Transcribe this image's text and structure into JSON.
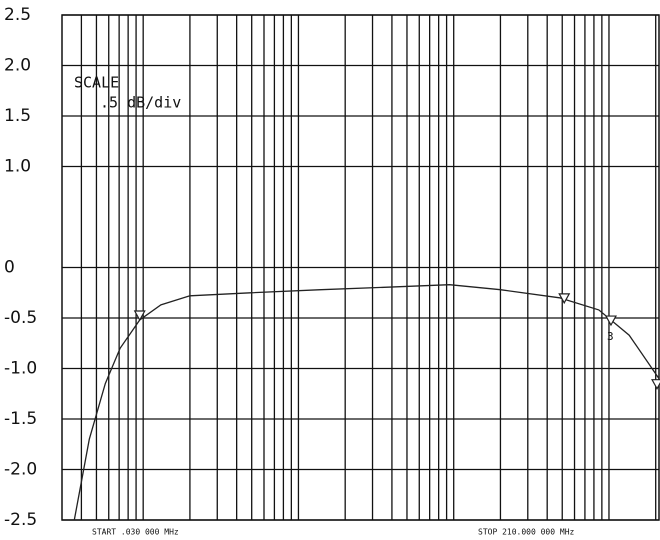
{
  "chart_data": {
    "type": "line",
    "annotations": [
      "SCALE",
      ".5 dB/div"
    ],
    "start_label": "START .030 000 MHz",
    "stop_label": "STOP 210.000 000 MHz",
    "log_x": true,
    "grid": true,
    "xlim": [
      0.03,
      210
    ],
    "xticks": [
      0.04,
      0.05,
      0.06,
      0.07,
      0.08,
      0.09,
      0.1,
      0.2,
      0.3,
      0.4,
      0.5,
      0.6,
      0.7,
      0.8,
      0.9,
      1,
      2,
      3,
      4,
      5,
      6,
      7,
      8,
      9,
      10,
      20,
      30,
      40,
      50,
      60,
      70,
      80,
      90,
      100,
      200
    ],
    "ylim": [
      -2.5,
      2.5
    ],
    "yticks": [
      -2.5,
      {
        "value": -2,
        "label": "-2.0"
      },
      -1.5,
      {
        "value": -1,
        "label": "-1.0"
      },
      -0.5,
      0,
      {
        "value": 1,
        "label": "1.0"
      },
      1.5,
      {
        "value": 2,
        "label": "2.0"
      },
      2.5
    ],
    "series": [
      {
        "color": "#222222",
        "x": [
          0.036,
          0.045,
          0.057,
          0.071,
          0.095,
          0.13,
          0.2,
          0.49,
          1.4,
          4.5,
          9.4,
          20,
          48,
          86,
          135,
          210
        ],
        "values": [
          -2.5,
          -1.7,
          -1.15,
          -0.8,
          -0.52,
          -0.37,
          -0.28,
          -0.25,
          -0.22,
          -0.19,
          -0.17,
          -0.22,
          -0.3,
          -0.42,
          -0.67,
          -1.1
        ]
      }
    ],
    "markers": {
      "x": [
        0.095,
        51.5,
        103,
        204
      ],
      "values": [
        -0.52,
        -0.35,
        -0.57,
        -1.2
      ],
      "labels": [
        null,
        null,
        "3",
        null
      ]
    }
  }
}
